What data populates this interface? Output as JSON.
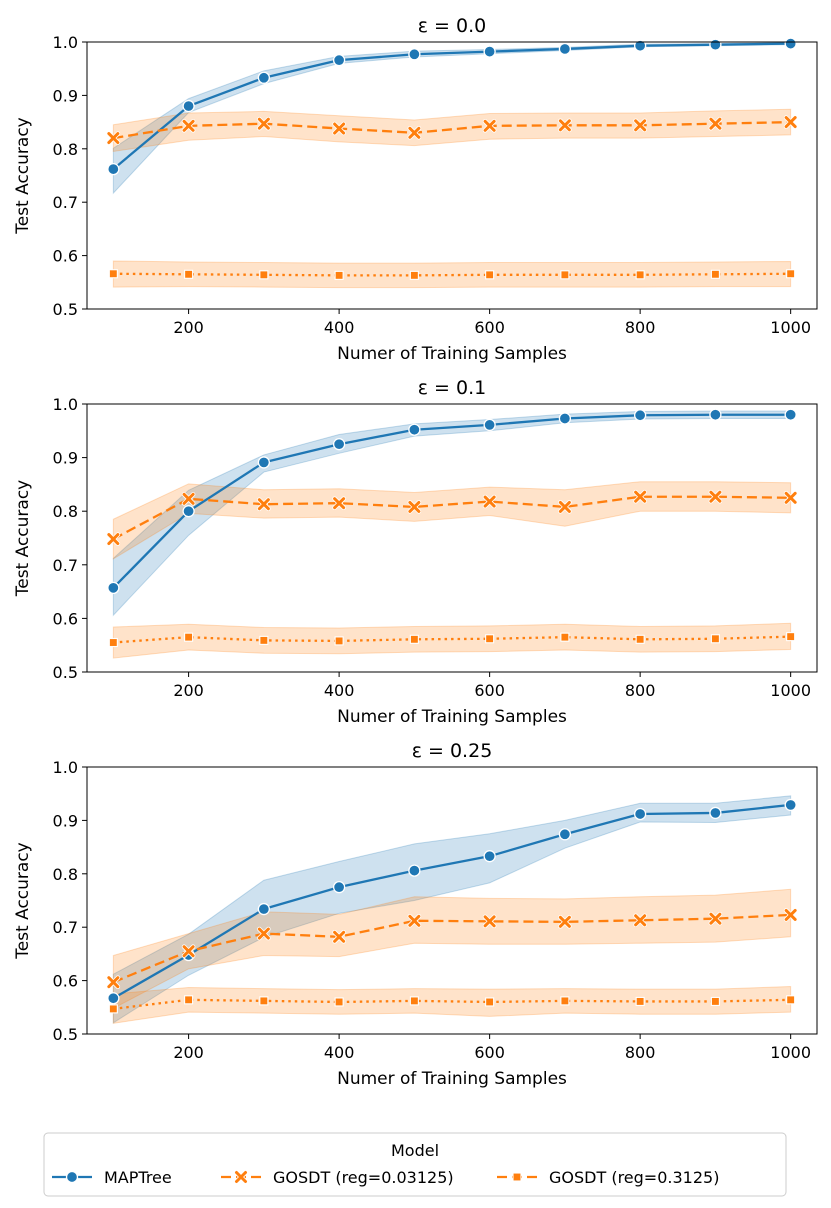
{
  "figure": {
    "x_label": "Numer of Training Samples",
    "y_label": "Test Accuracy",
    "legend": {
      "title": "Model",
      "placement": "bottom-center",
      "entries": [
        {
          "name": "MAPTree",
          "color": "#1f77b4",
          "marker": "circle",
          "dash": "solid"
        },
        {
          "name": "GOSDT (reg=0.03125)",
          "color": "#ff7f0e",
          "marker": "x",
          "dash": "dashed"
        },
        {
          "name": "GOSDT (reg=0.3125)",
          "color": "#ff7f0e",
          "marker": "square",
          "dash": "dotted"
        }
      ]
    }
  },
  "chart_data": [
    {
      "type": "line",
      "title": "ε = 0.0",
      "xlabel": "Numer of Training Samples",
      "ylabel": "Test Accuracy",
      "x": [
        100,
        200,
        300,
        400,
        500,
        600,
        700,
        800,
        900,
        1000
      ],
      "xlim": [
        65,
        1035
      ],
      "ylim": [
        0.5,
        1.0
      ],
      "xticks": [
        200,
        400,
        600,
        800,
        1000
      ],
      "yticks": [
        0.5,
        0.6,
        0.7,
        0.8,
        0.9,
        1.0
      ],
      "series": [
        {
          "name": "MAPTree",
          "values": [
            0.762,
            0.88,
            0.933,
            0.966,
            0.977,
            0.982,
            0.987,
            0.993,
            0.995,
            0.997
          ],
          "lower": [
            0.717,
            0.868,
            0.922,
            0.96,
            0.972,
            0.978,
            0.984,
            0.991,
            0.993,
            0.995
          ],
          "upper": [
            0.801,
            0.894,
            0.946,
            0.973,
            0.983,
            0.986,
            0.99,
            0.996,
            0.997,
            0.999
          ]
        },
        {
          "name": "GOSDT (reg=0.03125)",
          "values": [
            0.82,
            0.843,
            0.847,
            0.838,
            0.83,
            0.843,
            0.844,
            0.844,
            0.847,
            0.85
          ],
          "lower": [
            0.795,
            0.816,
            0.823,
            0.813,
            0.806,
            0.818,
            0.82,
            0.82,
            0.823,
            0.826
          ],
          "upper": [
            0.845,
            0.867,
            0.87,
            0.862,
            0.854,
            0.866,
            0.867,
            0.867,
            0.871,
            0.874
          ]
        },
        {
          "name": "GOSDT (reg=0.3125)",
          "values": [
            0.566,
            0.565,
            0.564,
            0.563,
            0.563,
            0.564,
            0.564,
            0.564,
            0.565,
            0.566
          ],
          "lower": [
            0.541,
            0.542,
            0.541,
            0.54,
            0.54,
            0.541,
            0.541,
            0.541,
            0.542,
            0.542
          ],
          "upper": [
            0.59,
            0.588,
            0.587,
            0.586,
            0.586,
            0.587,
            0.587,
            0.587,
            0.588,
            0.589
          ]
        }
      ]
    },
    {
      "type": "line",
      "title": "ε = 0.1",
      "xlabel": "Numer of Training Samples",
      "ylabel": "Test Accuracy",
      "x": [
        100,
        200,
        300,
        400,
        500,
        600,
        700,
        800,
        900,
        1000
      ],
      "xlim": [
        65,
        1035
      ],
      "ylim": [
        0.5,
        1.0
      ],
      "xticks": [
        200,
        400,
        600,
        800,
        1000
      ],
      "yticks": [
        0.5,
        0.6,
        0.7,
        0.8,
        0.9,
        1.0
      ],
      "series": [
        {
          "name": "MAPTree",
          "values": [
            0.657,
            0.8,
            0.891,
            0.925,
            0.952,
            0.961,
            0.973,
            0.979,
            0.98,
            0.98
          ],
          "lower": [
            0.606,
            0.755,
            0.873,
            0.908,
            0.94,
            0.95,
            0.965,
            0.972,
            0.973,
            0.973
          ],
          "upper": [
            0.712,
            0.839,
            0.905,
            0.943,
            0.963,
            0.971,
            0.981,
            0.986,
            0.987,
            0.987
          ]
        },
        {
          "name": "GOSDT (reg=0.03125)",
          "values": [
            0.748,
            0.823,
            0.813,
            0.815,
            0.808,
            0.818,
            0.808,
            0.827,
            0.827,
            0.825
          ],
          "lower": [
            0.711,
            0.796,
            0.787,
            0.789,
            0.781,
            0.792,
            0.772,
            0.8,
            0.8,
            0.797
          ],
          "upper": [
            0.785,
            0.851,
            0.84,
            0.842,
            0.835,
            0.845,
            0.84,
            0.855,
            0.855,
            0.853
          ]
        },
        {
          "name": "GOSDT (reg=0.3125)",
          "values": [
            0.555,
            0.565,
            0.559,
            0.558,
            0.561,
            0.562,
            0.565,
            0.561,
            0.562,
            0.566
          ],
          "lower": [
            0.526,
            0.541,
            0.535,
            0.534,
            0.537,
            0.538,
            0.541,
            0.537,
            0.538,
            0.542
          ],
          "upper": [
            0.584,
            0.589,
            0.583,
            0.582,
            0.585,
            0.586,
            0.589,
            0.585,
            0.586,
            0.591
          ]
        }
      ]
    },
    {
      "type": "line",
      "title": "ε = 0.25",
      "xlabel": "Numer of Training Samples",
      "ylabel": "Test Accuracy",
      "x": [
        100,
        200,
        300,
        400,
        500,
        600,
        700,
        800,
        900,
        1000
      ],
      "xlim": [
        65,
        1035
      ],
      "ylim": [
        0.5,
        1.0
      ],
      "xticks": [
        200,
        400,
        600,
        800,
        1000
      ],
      "yticks": [
        0.5,
        0.6,
        0.7,
        0.8,
        0.9,
        1.0
      ],
      "series": [
        {
          "name": "MAPTree",
          "values": [
            0.567,
            0.648,
            0.734,
            0.775,
            0.806,
            0.833,
            0.874,
            0.912,
            0.914,
            0.929
          ],
          "lower": [
            0.521,
            0.61,
            0.681,
            0.726,
            0.75,
            0.783,
            0.848,
            0.897,
            0.896,
            0.91
          ],
          "upper": [
            0.612,
            0.687,
            0.788,
            0.823,
            0.856,
            0.875,
            0.9,
            0.932,
            0.932,
            0.946
          ]
        },
        {
          "name": "GOSDT (reg=0.03125)",
          "values": [
            0.597,
            0.655,
            0.688,
            0.682,
            0.712,
            0.711,
            0.71,
            0.713,
            0.716,
            0.723
          ],
          "lower": [
            0.548,
            0.622,
            0.647,
            0.645,
            0.67,
            0.668,
            0.668,
            0.67,
            0.672,
            0.682
          ],
          "upper": [
            0.647,
            0.688,
            0.729,
            0.724,
            0.757,
            0.754,
            0.753,
            0.757,
            0.76,
            0.771
          ]
        },
        {
          "name": "GOSDT (reg=0.3125)",
          "values": [
            0.547,
            0.564,
            0.562,
            0.56,
            0.562,
            0.56,
            0.562,
            0.561,
            0.561,
            0.564
          ],
          "lower": [
            0.52,
            0.541,
            0.539,
            0.537,
            0.539,
            0.533,
            0.539,
            0.537,
            0.537,
            0.541
          ],
          "upper": [
            0.575,
            0.587,
            0.585,
            0.583,
            0.585,
            0.584,
            0.585,
            0.584,
            0.584,
            0.589
          ]
        }
      ]
    }
  ]
}
